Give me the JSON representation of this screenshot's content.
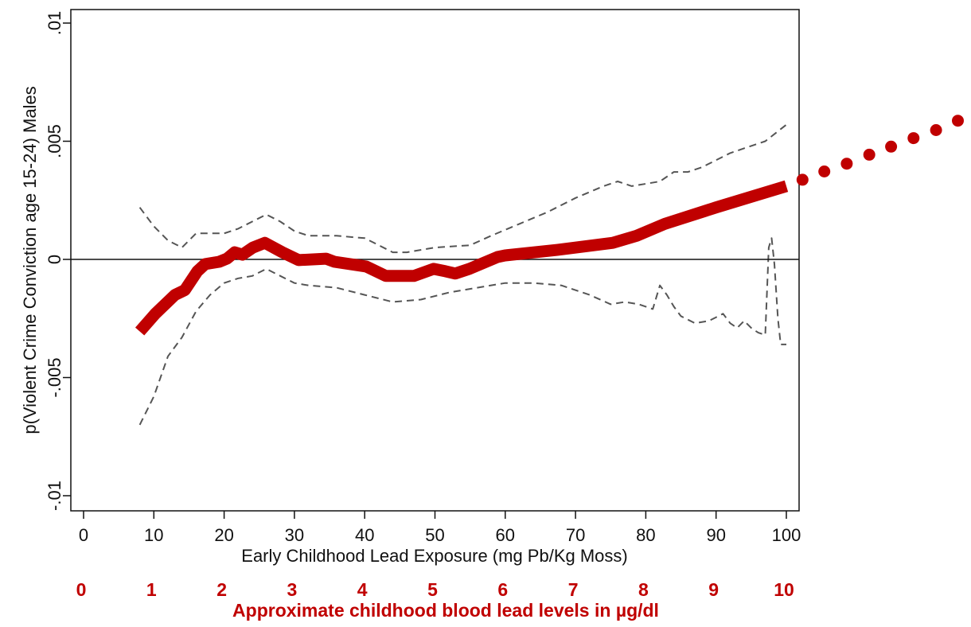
{
  "chart_data": {
    "type": "line",
    "title": "",
    "xlabel": "Early Childhood Lead Exposure (mg Pb/Kg Moss)",
    "ylabel": "p(Violent Crime Conviction age 15-24) Males",
    "secondary_xlabel": "Approximate childhood blood lead levels in µg/dl",
    "xlim": [
      -1,
      102
    ],
    "ylim": [
      -0.0106,
      0.0106
    ],
    "x_ticks": [
      0,
      10,
      20,
      30,
      40,
      50,
      60,
      70,
      80,
      90,
      100
    ],
    "x_tick_labels": [
      "0",
      "10",
      "20",
      "30",
      "40",
      "50",
      "60",
      "70",
      "80",
      "90",
      "100"
    ],
    "y_ticks": [
      -0.01,
      -0.005,
      0,
      0.005,
      0.01
    ],
    "y_tick_labels": [
      "-.01",
      "-.005",
      "0",
      ".005",
      ".01"
    ],
    "secondary_x_ticks": [
      0,
      10,
      20,
      30,
      40,
      50,
      60,
      70,
      80,
      90,
      100
    ],
    "secondary_x_tick_labels": [
      "0",
      "1",
      "2",
      "3",
      "4",
      "5",
      "6",
      "7",
      "8",
      "9",
      "10"
    ],
    "reference_line_y": 0,
    "grid": false,
    "legend": "none",
    "colors": {
      "fit": "#c00000",
      "ci": "#555555",
      "axis": "#111111",
      "secondary": "#c00000"
    },
    "series": [
      {
        "name": "fitted",
        "style": "thick-solid",
        "x": [
          8,
          10.2,
          13,
          14.4,
          16.2,
          17.3,
          19.3,
          20.4,
          21.5,
          22.6,
          24.1,
          25.8,
          28.3,
          30.6,
          34.5,
          35.7,
          40.2,
          43,
          47,
          49.8,
          51.5,
          52.9,
          54.9,
          58.9,
          60,
          67.4,
          75.3,
          78.7,
          82.7,
          90,
          100
        ],
        "y": [
          -0.00305,
          -0.0023,
          -0.0015,
          -0.0013,
          -0.0005,
          -0.0002,
          -0.0001,
          3e-05,
          0.0003,
          0.0002,
          0.0005,
          0.0007,
          0.0003,
          -3e-05,
          3e-05,
          -0.0001,
          -0.0003,
          -0.0007,
          -0.0007,
          -0.0004,
          -0.0005,
          -0.0006,
          -0.0004,
          0.0001,
          0.00017,
          0.0004,
          0.0007,
          0.001,
          0.0015,
          0.0022,
          0.0031
        ]
      },
      {
        "name": "extrapolation",
        "style": "dotted",
        "x": [
          102.3,
          105.4,
          108.6,
          111.8,
          114.9,
          118.1,
          121.3,
          124.4
        ],
        "y": [
          0.00337,
          0.00372,
          0.00405,
          0.00443,
          0.00477,
          0.00513,
          0.00547,
          0.00587
        ]
      },
      {
        "name": "upper-ci",
        "style": "dashed",
        "x": [
          8,
          10,
          12,
          14,
          16,
          18,
          20,
          22,
          24,
          26,
          28,
          30,
          32,
          36,
          40,
          42,
          44,
          46,
          50,
          55,
          58,
          62,
          66,
          70,
          74,
          76,
          78,
          80,
          82,
          84,
          86,
          88,
          90,
          92,
          95,
          97,
          100
        ],
        "y": [
          0.0022,
          0.0014,
          0.0008,
          0.0005,
          0.0011,
          0.0011,
          0.0011,
          0.0013,
          0.0016,
          0.0019,
          0.0016,
          0.0012,
          0.001,
          0.001,
          0.0009,
          0.0006,
          0.0003,
          0.0003,
          0.0005,
          0.0006,
          0.001,
          0.0015,
          0.002,
          0.0026,
          0.0031,
          0.0033,
          0.0031,
          0.0032,
          0.0033,
          0.0037,
          0.0037,
          0.0039,
          0.0042,
          0.0045,
          0.0048,
          0.005,
          0.0057
        ]
      },
      {
        "name": "lower-ci",
        "style": "dashed",
        "x": [
          8,
          10,
          12,
          14,
          16,
          18,
          20,
          22,
          24,
          26,
          28,
          30,
          32,
          36,
          40,
          44,
          48,
          52,
          56,
          60,
          64,
          68,
          72,
          75,
          77,
          79,
          81,
          82,
          83,
          84,
          85,
          87,
          89,
          91,
          92,
          93,
          94,
          95,
          96,
          97,
          97.5,
          97.9,
          98.3,
          98.8,
          99.2,
          100
        ],
        "y": [
          -0.007,
          -0.0058,
          -0.0041,
          -0.0033,
          -0.0022,
          -0.0015,
          -0.001,
          -0.0008,
          -0.0007,
          -0.0004,
          -0.0007,
          -0.001,
          -0.0011,
          -0.0012,
          -0.0015,
          -0.0018,
          -0.0017,
          -0.0014,
          -0.0012,
          -0.001,
          -0.001,
          -0.0011,
          -0.0015,
          -0.0019,
          -0.0018,
          -0.0019,
          -0.0021,
          -0.0011,
          -0.0015,
          -0.002,
          -0.0024,
          -0.0027,
          -0.0026,
          -0.0023,
          -0.0027,
          -0.0029,
          -0.0026,
          -0.0029,
          -0.0031,
          -0.0032,
          0.0005,
          0.0009,
          -0.0002,
          -0.0025,
          -0.0036,
          -0.0036
        ]
      }
    ]
  }
}
